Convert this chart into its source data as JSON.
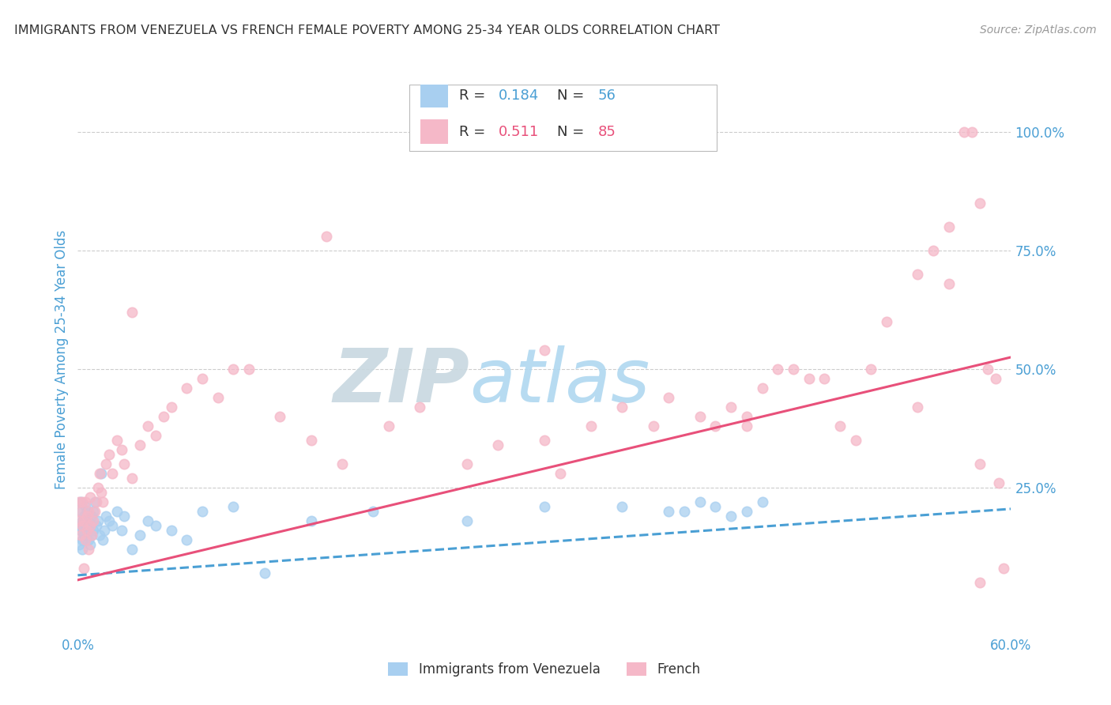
{
  "title": "IMMIGRANTS FROM VENEZUELA VS FRENCH FEMALE POVERTY AMONG 25-34 YEAR OLDS CORRELATION CHART",
  "source": "Source: ZipAtlas.com",
  "ylabel": "Female Poverty Among 25-34 Year Olds",
  "xlim": [
    0.0,
    0.6
  ],
  "ylim": [
    -0.06,
    1.1
  ],
  "xticks": [
    0.0,
    0.1,
    0.2,
    0.3,
    0.4,
    0.5,
    0.6
  ],
  "xtick_labels": [
    "0.0%",
    "",
    "",
    "",
    "",
    "",
    "60.0%"
  ],
  "ytick_right_vals": [
    0.25,
    0.5,
    0.75,
    1.0
  ],
  "ytick_right_labels": [
    "25.0%",
    "50.0%",
    "75.0%",
    "100.0%"
  ],
  "blue_scatter_color": "#a8cff0",
  "pink_scatter_color": "#f5b8c8",
  "blue_line_color": "#4a9fd4",
  "pink_line_color": "#e8507a",
  "watermark_color": "#daeef8",
  "legend_r_blue": "0.184",
  "legend_n_blue": "56",
  "legend_r_pink": "0.511",
  "legend_n_pink": "85",
  "legend_label_blue": "Immigrants from Venezuela",
  "legend_label_pink": "French",
  "blue_scatter_x": [
    0.001,
    0.001,
    0.002,
    0.002,
    0.002,
    0.003,
    0.003,
    0.003,
    0.004,
    0.004,
    0.005,
    0.005,
    0.006,
    0.006,
    0.007,
    0.007,
    0.008,
    0.008,
    0.009,
    0.009,
    0.01,
    0.01,
    0.011,
    0.012,
    0.013,
    0.014,
    0.015,
    0.016,
    0.017,
    0.018,
    0.02,
    0.022,
    0.025,
    0.028,
    0.03,
    0.035,
    0.04,
    0.045,
    0.05,
    0.06,
    0.07,
    0.08,
    0.1,
    0.12,
    0.15,
    0.19,
    0.25,
    0.3,
    0.35,
    0.38,
    0.39,
    0.4,
    0.41,
    0.42,
    0.43,
    0.44
  ],
  "blue_scatter_y": [
    0.17,
    0.13,
    0.16,
    0.2,
    0.22,
    0.14,
    0.18,
    0.12,
    0.15,
    0.19,
    0.17,
    0.21,
    0.16,
    0.2,
    0.14,
    0.18,
    0.13,
    0.17,
    0.15,
    0.19,
    0.16,
    0.2,
    0.22,
    0.17,
    0.18,
    0.15,
    0.28,
    0.14,
    0.16,
    0.19,
    0.18,
    0.17,
    0.2,
    0.16,
    0.19,
    0.12,
    0.15,
    0.18,
    0.17,
    0.16,
    0.14,
    0.2,
    0.21,
    0.07,
    0.18,
    0.2,
    0.18,
    0.21,
    0.21,
    0.2,
    0.2,
    0.22,
    0.21,
    0.19,
    0.2,
    0.22
  ],
  "pink_scatter_x": [
    0.001,
    0.001,
    0.002,
    0.002,
    0.003,
    0.003,
    0.004,
    0.004,
    0.005,
    0.005,
    0.006,
    0.006,
    0.007,
    0.007,
    0.008,
    0.008,
    0.009,
    0.01,
    0.011,
    0.012,
    0.013,
    0.014,
    0.015,
    0.016,
    0.018,
    0.02,
    0.022,
    0.025,
    0.028,
    0.03,
    0.035,
    0.04,
    0.045,
    0.05,
    0.055,
    0.06,
    0.07,
    0.08,
    0.09,
    0.1,
    0.11,
    0.13,
    0.15,
    0.17,
    0.2,
    0.22,
    0.25,
    0.27,
    0.3,
    0.31,
    0.33,
    0.35,
    0.37,
    0.38,
    0.4,
    0.41,
    0.42,
    0.43,
    0.44,
    0.45,
    0.46,
    0.47,
    0.48,
    0.49,
    0.5,
    0.51,
    0.52,
    0.54,
    0.55,
    0.56,
    0.56,
    0.57,
    0.575,
    0.58,
    0.585,
    0.59,
    0.592,
    0.595,
    0.035,
    0.16,
    0.3,
    0.58,
    0.43,
    0.54,
    0.58
  ],
  "pink_scatter_y": [
    0.22,
    0.18,
    0.2,
    0.15,
    0.17,
    0.22,
    0.08,
    0.18,
    0.14,
    0.22,
    0.16,
    0.19,
    0.12,
    0.2,
    0.17,
    0.23,
    0.15,
    0.18,
    0.2,
    0.22,
    0.25,
    0.28,
    0.24,
    0.22,
    0.3,
    0.32,
    0.28,
    0.35,
    0.33,
    0.3,
    0.27,
    0.34,
    0.38,
    0.36,
    0.4,
    0.42,
    0.46,
    0.48,
    0.44,
    0.5,
    0.5,
    0.4,
    0.35,
    0.3,
    0.38,
    0.42,
    0.3,
    0.34,
    0.35,
    0.28,
    0.38,
    0.42,
    0.38,
    0.44,
    0.4,
    0.38,
    0.42,
    0.38,
    0.46,
    0.5,
    0.5,
    0.48,
    0.48,
    0.38,
    0.35,
    0.5,
    0.6,
    0.7,
    0.75,
    0.8,
    0.68,
    1.0,
    1.0,
    0.85,
    0.5,
    0.48,
    0.26,
    0.08,
    0.62,
    0.78,
    0.54,
    0.3,
    0.4,
    0.42,
    0.05
  ],
  "blue_trend_x": [
    0.0,
    0.6
  ],
  "blue_trend_y": [
    0.065,
    0.205
  ],
  "pink_trend_x": [
    0.0,
    0.6
  ],
  "pink_trend_y": [
    0.055,
    0.525
  ],
  "background_color": "#ffffff",
  "grid_color": "#cccccc",
  "title_color": "#333333",
  "axis_label_color": "#4a9fd4",
  "source_color": "#999999",
  "marker_size": 80,
  "marker_linewidth": 1.2
}
